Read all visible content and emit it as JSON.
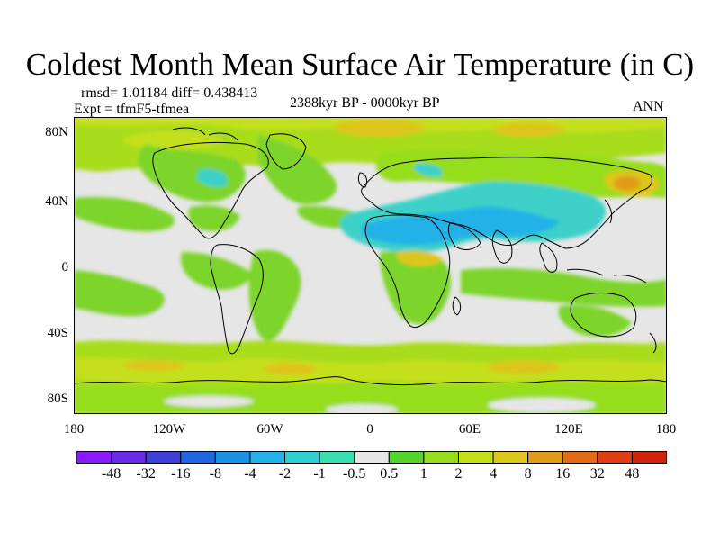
{
  "title": "Coldest Month Mean Surface Air Temperature (in C)",
  "stats": "rmsd= 1.01184 diff= 0.438413",
  "experiment": "Expt = tfmF5-tfmea",
  "period": "2388kyr BP - 0000kyr BP",
  "season": "ANN",
  "latitude_ticks": [
    "80N",
    "40N",
    "0",
    "40S",
    "80S"
  ],
  "longitude_ticks": [
    "180",
    "120W",
    "60W",
    "0",
    "60E",
    "120E",
    "180"
  ],
  "colorbar": {
    "labels": [
      "-48",
      "-32",
      "-16",
      "-8",
      "-4",
      "-2",
      "-1",
      "-0.5",
      "0.5",
      "1",
      "2",
      "4",
      "8",
      "16",
      "32",
      "48"
    ],
    "colors": [
      "#8c1aff",
      "#6a2ae6",
      "#3e3fd9",
      "#1f66e0",
      "#1a90e6",
      "#22b2e8",
      "#2ccfd4",
      "#39dfb0",
      "#e6e6e6",
      "#52d62e",
      "#96dd1e",
      "#c4e01c",
      "#ddc61a",
      "#e09c18",
      "#e26b1a",
      "#df3e16",
      "#d0240c"
    ]
  },
  "colors": {
    "background": "#ffffff",
    "neutral": "#e6e6e6",
    "warm_green": "#7dd42a",
    "yellow_green": "#a8dd1e",
    "yellow": "#d6cf1c",
    "orange": "#e0a018",
    "cyan": "#3cd0c8",
    "light_blue": "#22b2e8",
    "coast": "#000000"
  }
}
